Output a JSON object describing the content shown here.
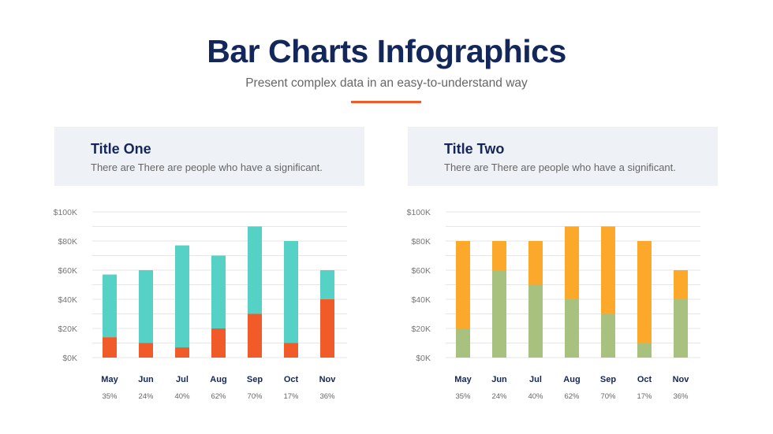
{
  "header": {
    "title": "Bar Charts Infographics",
    "subtitle": "Present complex data in an easy-to-understand way",
    "accent_color": "#f15a29"
  },
  "panels": [
    {
      "title": "Title One",
      "description": "There are There are people who have a significant."
    },
    {
      "title": "Title Two",
      "description": "There are There are people who have a significant."
    }
  ],
  "chart_data": [
    {
      "type": "bar",
      "stacked": true,
      "categories": [
        "May",
        "Jun",
        "Jul",
        "Aug",
        "Sep",
        "Oct",
        "Nov"
      ],
      "percent_labels": [
        "35%",
        "24%",
        "40%",
        "62%",
        "70%",
        "17%",
        "36%"
      ],
      "yticks": [
        "$0K",
        "$20K",
        "$40K",
        "$60K",
        "$80K",
        "$100K"
      ],
      "ylim": [
        0,
        100
      ],
      "unit": "$K",
      "grid": true,
      "series": [
        {
          "name": "bottom",
          "color": "#f15a29",
          "values": [
            14,
            10,
            7,
            20,
            30,
            10,
            40
          ]
        },
        {
          "name": "top",
          "color": "#56d1c5",
          "values": [
            43,
            50,
            70,
            50,
            60,
            70,
            20
          ]
        }
      ]
    },
    {
      "type": "bar",
      "stacked": true,
      "categories": [
        "May",
        "Jun",
        "Jul",
        "Aug",
        "Sep",
        "Oct",
        "Nov"
      ],
      "percent_labels": [
        "35%",
        "24%",
        "40%",
        "62%",
        "70%",
        "17%",
        "36%"
      ],
      "yticks": [
        "$0K",
        "$20K",
        "$40K",
        "$60K",
        "$80K",
        "$100K"
      ],
      "ylim": [
        0,
        100
      ],
      "unit": "$K",
      "grid": true,
      "series": [
        {
          "name": "bottom",
          "color": "#a9c17f",
          "values": [
            20,
            60,
            50,
            40,
            30,
            10,
            40
          ]
        },
        {
          "name": "top",
          "color": "#fca82b",
          "values": [
            60,
            20,
            30,
            50,
            60,
            70,
            20
          ]
        }
      ]
    }
  ]
}
